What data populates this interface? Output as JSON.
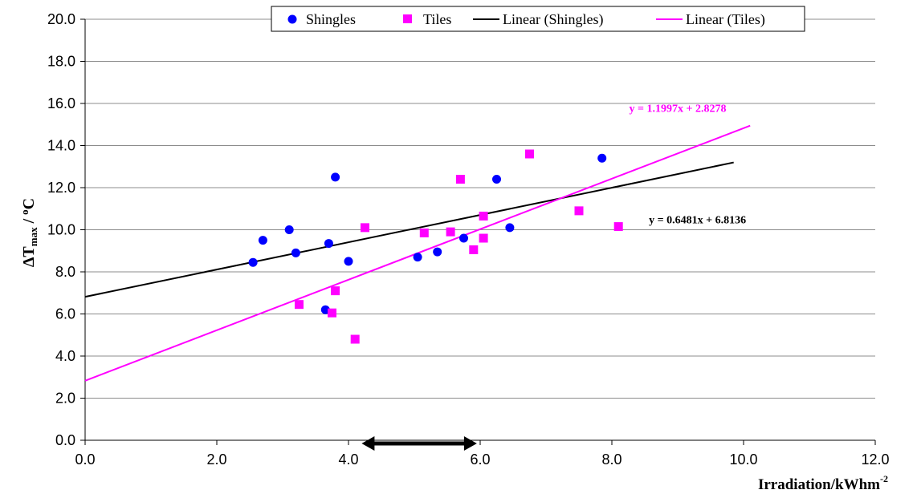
{
  "chart_data": {
    "type": "scatter",
    "xlim": [
      0,
      12
    ],
    "ylim": [
      0,
      20
    ],
    "x_ticks": [
      "0.0",
      "2.0",
      "4.0",
      "6.0",
      "8.0",
      "10.0",
      "12.0"
    ],
    "y_ticks": [
      "0.0",
      "2.0",
      "4.0",
      "6.0",
      "8.0",
      "10.0",
      "12.0",
      "14.0",
      "16.0",
      "18.0",
      "20.0"
    ],
    "x_tick_values": [
      0,
      2,
      4,
      6,
      8,
      10,
      12
    ],
    "y_tick_values": [
      0,
      2,
      4,
      6,
      8,
      10,
      12,
      14,
      16,
      18,
      20
    ],
    "xlabel": {
      "main": "Irradiation/kWhm",
      "sup": "-2"
    },
    "ylabel": {
      "delta": "ΔT",
      "sub": "max",
      "rest": " / ",
      "degree": "o",
      "unit": "C"
    },
    "grid": "horizontal",
    "legend_position": "top-right",
    "series": [
      {
        "name": "Shingles",
        "marker": "circle",
        "color": "#0000ff",
        "points": [
          [
            2.55,
            8.45
          ],
          [
            2.7,
            9.5
          ],
          [
            3.1,
            10.0
          ],
          [
            3.2,
            8.9
          ],
          [
            3.65,
            6.2
          ],
          [
            3.7,
            9.35
          ],
          [
            3.8,
            12.5
          ],
          [
            4.0,
            8.5
          ],
          [
            5.05,
            8.7
          ],
          [
            5.35,
            8.95
          ],
          [
            5.75,
            9.6
          ],
          [
            6.25,
            12.4
          ],
          [
            6.45,
            10.1
          ],
          [
            7.85,
            13.4
          ]
        ]
      },
      {
        "name": "Tiles",
        "marker": "square",
        "color": "#ff00ff",
        "points": [
          [
            3.25,
            6.45
          ],
          [
            3.75,
            6.05
          ],
          [
            3.8,
            7.1
          ],
          [
            4.1,
            4.8
          ],
          [
            4.25,
            10.1
          ],
          [
            5.15,
            9.85
          ],
          [
            5.55,
            9.9
          ],
          [
            5.7,
            12.4
          ],
          [
            5.9,
            9.05
          ],
          [
            6.05,
            9.6
          ],
          [
            6.05,
            10.65
          ],
          [
            6.75,
            13.6
          ],
          [
            7.5,
            10.9
          ],
          [
            8.1,
            10.15
          ]
        ]
      }
    ],
    "trendlines": [
      {
        "name": "Linear (Shingles)",
        "color": "#000000",
        "slope": 0.6481,
        "intercept": 6.8136,
        "x_range": [
          0,
          9.85
        ],
        "equation": "y = 0.6481x + 6.8136",
        "label_anchor": [
          9.3,
          10.3
        ]
      },
      {
        "name": "Linear (Tiles)",
        "color": "#ff00ff",
        "slope": 1.1997,
        "intercept": 2.8278,
        "x_range": [
          0,
          10.1
        ],
        "equation": "y = 1.1997x + 2.8278",
        "label_anchor": [
          9.0,
          15.6
        ]
      }
    ],
    "range_arrow": {
      "from": 4.2,
      "to": 5.95
    }
  }
}
